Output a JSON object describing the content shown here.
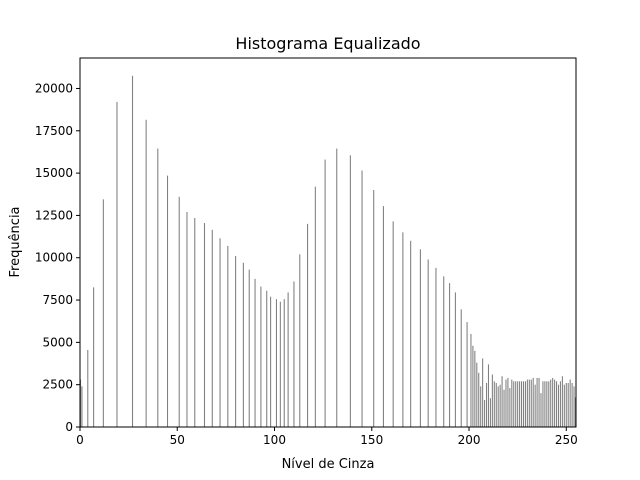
{
  "figure": {
    "title": "Histograma Equalizado",
    "background_color": "#ffffff"
  },
  "chart_data": {
    "type": "bar",
    "title": "Histograma Equalizado",
    "xlabel": "Nível de Cinza",
    "ylabel": "Frequência",
    "xlim": [
      0,
      255
    ],
    "ylim": [
      0,
      21800
    ],
    "grid": false,
    "legend": "none",
    "bar_color": "#808080",
    "x_ticks": [
      0,
      50,
      100,
      150,
      200,
      250
    ],
    "y_ticks": [
      0,
      2500,
      5000,
      7500,
      10000,
      12500,
      15000,
      17500,
      20000
    ],
    "x_tick_labels": [
      "0",
      "50",
      "100",
      "150",
      "200",
      "250"
    ],
    "y_tick_labels": [
      "0",
      "2500",
      "5000",
      "7500",
      "10000",
      "12500",
      "15000",
      "17500",
      "20000"
    ],
    "x": [
      0,
      1,
      4,
      7,
      12,
      19,
      27,
      34,
      40,
      45,
      51,
      55,
      59,
      64,
      68,
      72,
      76,
      80,
      84,
      87,
      90,
      93,
      96,
      98,
      101,
      103,
      105,
      107,
      110,
      113,
      117,
      121,
      126,
      132,
      139,
      145,
      151,
      156,
      161,
      166,
      170,
      175,
      179,
      183,
      187,
      190,
      193,
      196,
      199,
      201,
      202,
      203,
      204,
      205,
      206,
      207,
      208,
      209,
      210,
      211,
      212,
      213,
      214,
      215,
      216,
      217,
      218,
      219,
      220,
      221,
      222,
      223,
      224,
      225,
      226,
      227,
      228,
      229,
      230,
      231,
      232,
      233,
      234,
      235,
      236,
      237,
      238,
      239,
      240,
      241,
      242,
      243,
      244,
      245,
      246,
      247,
      248,
      249,
      250,
      251,
      252,
      253,
      254,
      255
    ],
    "values": [
      2800,
      2400,
      4550,
      8250,
      13450,
      19200,
      20750,
      18150,
      16450,
      14850,
      13600,
      12700,
      12350,
      12050,
      11650,
      11150,
      10700,
      10100,
      9700,
      9300,
      8750,
      8300,
      8050,
      7700,
      7550,
      7400,
      7550,
      7950,
      8600,
      10200,
      12000,
      14200,
      15800,
      16450,
      16050,
      15150,
      14000,
      13050,
      12150,
      11500,
      11000,
      10500,
      9900,
      9400,
      8900,
      8500,
      7950,
      6950,
      6200,
      5500,
      4800,
      4500,
      3800,
      3200,
      2400,
      4050,
      1600,
      2600,
      3700,
      1700,
      3100,
      2700,
      2600,
      2400,
      2500,
      3000,
      2200,
      2800,
      2900,
      2300,
      2800,
      2700,
      2700,
      2700,
      2700,
      2700,
      2700,
      2700,
      2800,
      2800,
      2800,
      2900,
      2500,
      2900,
      2900,
      2000,
      2700,
      2700,
      2700,
      2700,
      2800,
      2900,
      2800,
      2700,
      2500,
      2700,
      3000,
      2500,
      2600,
      2600,
      2800,
      2600,
      2400,
      1750
    ]
  }
}
